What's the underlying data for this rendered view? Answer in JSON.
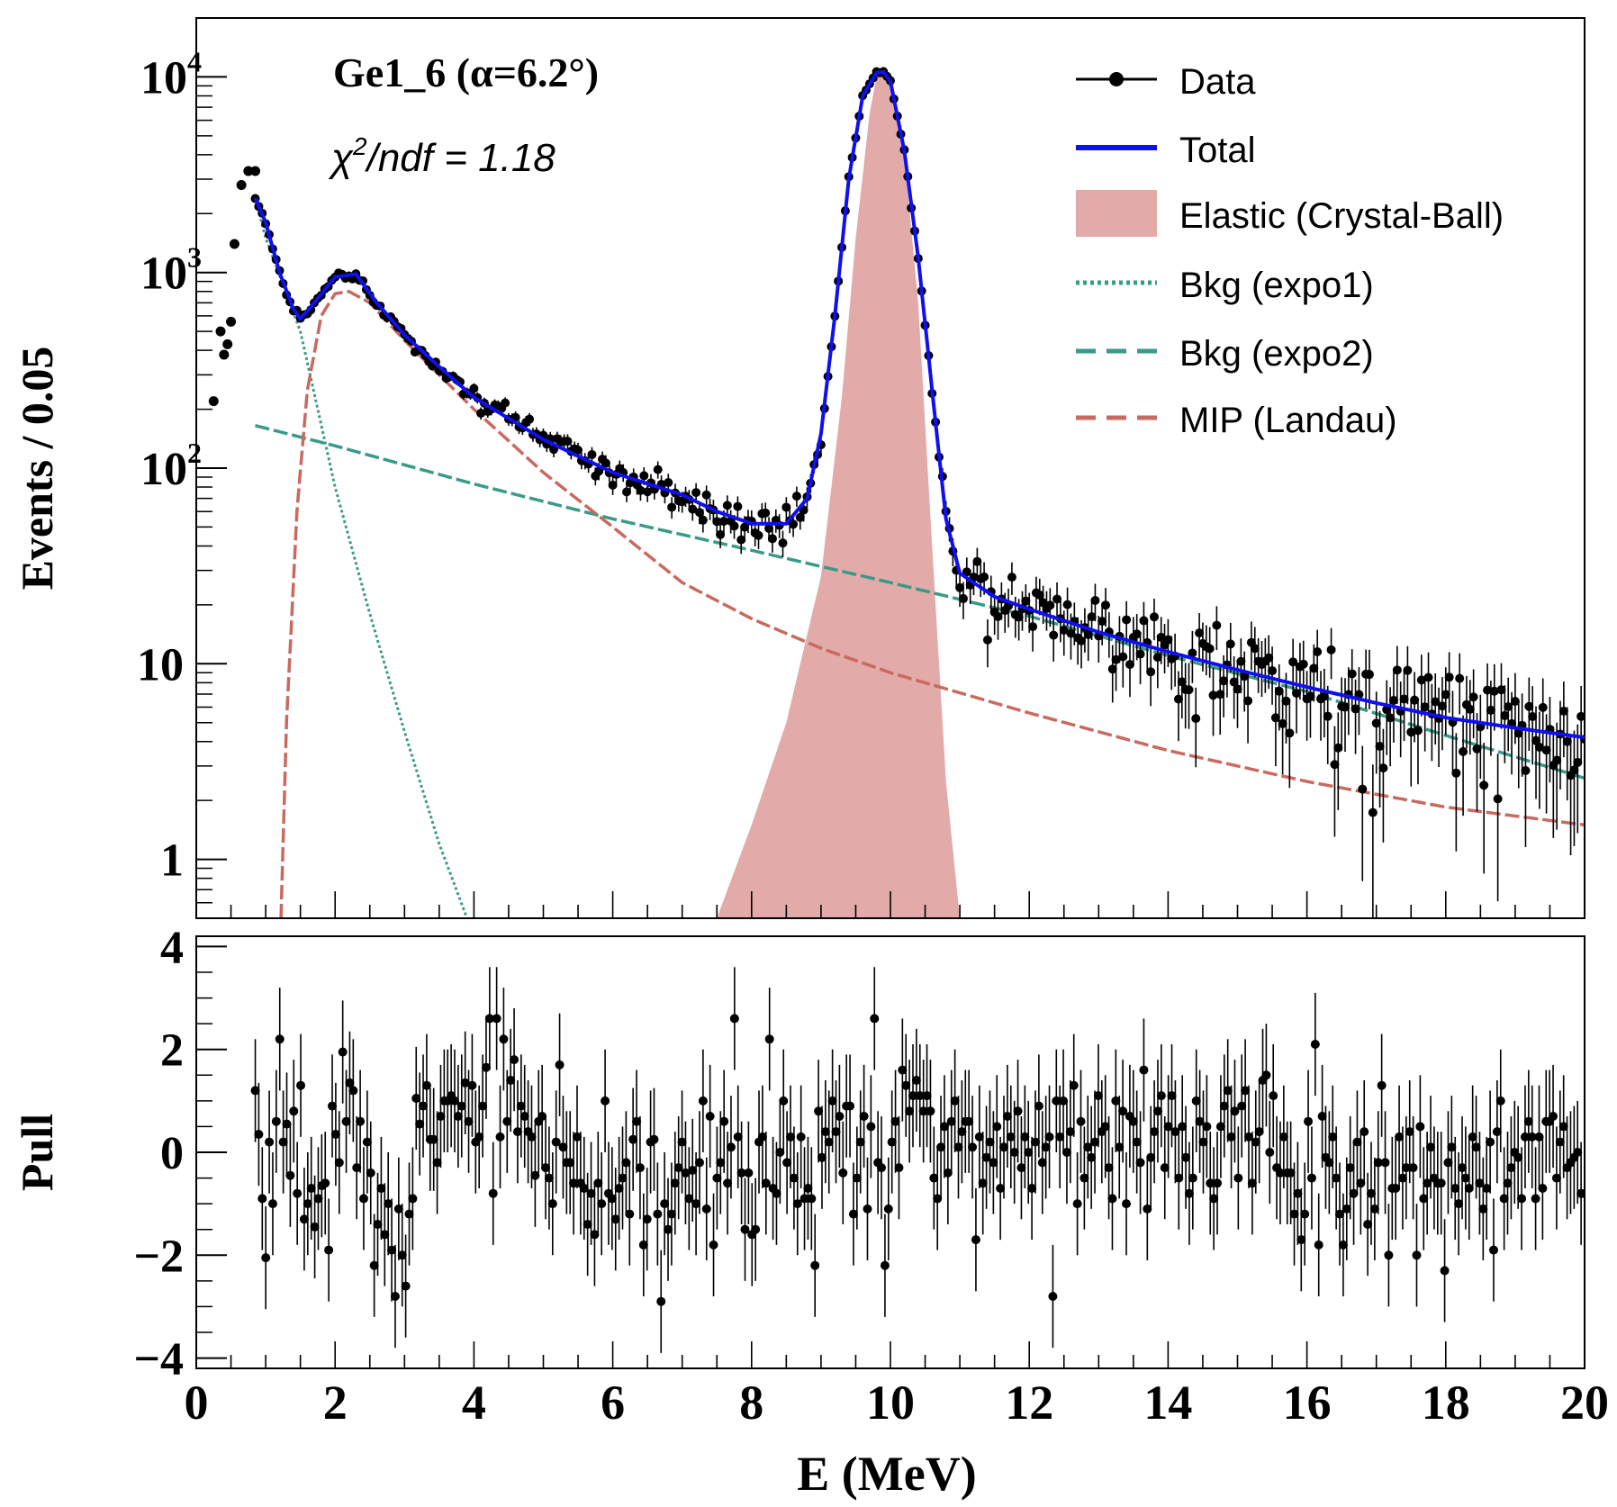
{
  "chart_data": [
    {
      "panel": "top",
      "type": "scatter",
      "xlim": [
        0,
        20
      ],
      "ylim": [
        0.5,
        20000
      ],
      "yscale": "log",
      "ylabel": "Events / 0.05",
      "yticks": [
        {
          "value": 1,
          "label": "1"
        },
        {
          "value": 10,
          "label": "10"
        },
        {
          "value": 100,
          "label": "10",
          "exp": "2"
        },
        {
          "value": 1000,
          "label": "10",
          "exp": "3"
        },
        {
          "value": 10000,
          "label": "10",
          "exp": "4"
        }
      ],
      "annotations": {
        "title": "Ge1_6 (α=6.2°)",
        "chi2_prefix": "χ",
        "chi2_sup": "2",
        "chi2_rest": "/ndf = 1.18"
      },
      "legend": {
        "position": "top-right",
        "entries": [
          {
            "key": "data",
            "label": "Data"
          },
          {
            "key": "total",
            "label": "Total"
          },
          {
            "key": "elastic",
            "label": "Elastic (Crystal-Ball)"
          },
          {
            "key": "expo1",
            "label": "Bkg (expo1)"
          },
          {
            "key": "expo2",
            "label": "Bkg (expo2)"
          },
          {
            "key": "mip",
            "label": "MIP (Landau)"
          }
        ]
      },
      "colors": {
        "data": "#000000",
        "total": "#1010ee",
        "elastic": "#e2aaa8",
        "expo1": "#3a9a88",
        "expo2": "#3a9a88",
        "mip": "#c86a60"
      },
      "series": [
        {
          "name": "Data (low-energy points)",
          "x": [
            0.25,
            0.35,
            0.4,
            0.45,
            0.5,
            0.55,
            0.65,
            0.75,
            0.85
          ],
          "y": [
            220,
            500,
            380,
            430,
            560,
            1400,
            2800,
            3300,
            3300
          ]
        },
        {
          "name": "Total",
          "x": [
            0.85,
            1.0,
            1.2,
            1.4,
            1.5,
            1.7,
            2.0,
            2.3,
            2.6,
            3.0,
            3.5,
            4.0,
            5.0,
            6.0,
            7.0,
            7.5,
            8.0,
            8.5,
            8.8,
            9.0,
            9.2,
            9.4,
            9.6,
            9.8,
            9.9,
            10.0,
            10.2,
            10.4,
            10.6,
            10.8,
            11.0,
            11.5,
            12.0,
            13.0,
            14.0,
            15.0,
            16.0,
            17.0,
            18.0,
            19.0,
            20.0
          ],
          "y": [
            2400,
            1800,
            1000,
            650,
            580,
            700,
            950,
            980,
            700,
            480,
            330,
            230,
            140,
            95,
            73,
            60,
            52,
            52,
            70,
            150,
            600,
            3000,
            8000,
            10500,
            10600,
            9500,
            4200,
            1200,
            250,
            55,
            29,
            22,
            19,
            14.5,
            11.5,
            9.3,
            7.6,
            6.3,
            5.3,
            4.7,
            4.2
          ]
        },
        {
          "name": "Elastic (Crystal-Ball)",
          "x": [
            7.5,
            8.0,
            8.5,
            9.0,
            9.3,
            9.5,
            9.7,
            9.8,
            9.9,
            10.0,
            10.2,
            10.4,
            10.6,
            10.8,
            11.0
          ],
          "y": [
            0.5,
            1.5,
            5,
            28,
            230,
            1500,
            6500,
            10000,
            10500,
            9000,
            4000,
            700,
            40,
            2.5,
            0.5
          ]
        },
        {
          "name": "Bkg (expo1)",
          "x": [
            0.85,
            1.0,
            1.5,
            2.0,
            2.5,
            3.0,
            3.5,
            3.9
          ],
          "y": [
            2400,
            1500,
            500,
            80,
            18,
            4.5,
            1.2,
            0.5
          ]
        },
        {
          "name": "Bkg (expo2)",
          "x": [
            0.85,
            2.0,
            4.0,
            6.0,
            8.0,
            10.0,
            12.0,
            14.0,
            16.0,
            18.0,
            20.0
          ],
          "y": [
            165,
            130,
            83,
            55,
            38,
            26,
            17.5,
            11,
            7.2,
            4.3,
            2.6
          ]
        },
        {
          "name": "MIP (Landau)",
          "x": [
            1.22,
            1.3,
            1.45,
            1.6,
            1.8,
            2.0,
            2.2,
            2.5,
            3.0,
            3.5,
            4.0,
            5.0,
            6.0,
            7.0,
            8.0,
            9.0,
            10.0,
            12.0,
            14.0,
            16.0,
            18.0,
            20.0
          ],
          "y": [
            0.5,
            5,
            60,
            250,
            600,
            780,
            800,
            700,
            450,
            300,
            200,
            95,
            50,
            26,
            17,
            12,
            9,
            5.6,
            3.6,
            2.5,
            1.85,
            1.5
          ]
        }
      ]
    },
    {
      "panel": "bottom",
      "type": "scatter",
      "xlim": [
        0,
        20
      ],
      "ylim": [
        -4.2,
        4.2
      ],
      "ylabel": "Pull",
      "xlabel": "E (MeV)",
      "yticks": [
        {
          "value": 4,
          "label": "4"
        },
        {
          "value": 2,
          "label": "2"
        },
        {
          "value": 0,
          "label": "0"
        },
        {
          "value": -2,
          "label": "−2"
        },
        {
          "value": -4,
          "label": "−4"
        }
      ],
      "xticks": [
        {
          "value": 0,
          "label": "0"
        },
        {
          "value": 2,
          "label": "2"
        },
        {
          "value": 4,
          "label": "4"
        },
        {
          "value": 6,
          "label": "6"
        },
        {
          "value": 8,
          "label": "8"
        },
        {
          "value": 10,
          "label": "10"
        },
        {
          "value": 12,
          "label": "12"
        },
        {
          "value": 14,
          "label": "14"
        },
        {
          "value": 16,
          "label": "16"
        },
        {
          "value": 18,
          "label": "18"
        },
        {
          "value": 20,
          "label": "20"
        }
      ],
      "pull_x_range": [
        0.85,
        20.0
      ],
      "pull_error": 1.0,
      "pull_values": [
        1.2,
        0.35,
        -0.9,
        -2.05,
        0.2,
        -1.0,
        0.6,
        2.2,
        0.2,
        0.55,
        -0.45,
        0.8,
        -0.8,
        1.3,
        -1.3,
        -1.0,
        -0.7,
        -1.45,
        -0.9,
        -0.65,
        -0.6,
        -1.9,
        0.9,
        0.35,
        -0.2,
        1.95,
        0.6,
        1.35,
        1.2,
        -0.3,
        0.6,
        -0.9,
        0.2,
        -0.4,
        -2.2,
        -1.4,
        -0.7,
        -1.6,
        -1.0,
        -1.9,
        -2.8,
        -1.1,
        -2.0,
        -2.6,
        -1.2,
        -0.9,
        1.05,
        0.55,
        0.9,
        1.3,
        0.25,
        0.25,
        -0.2,
        0.7,
        1.0,
        1.0,
        1.1,
        1.0,
        0.7,
        0.9,
        1.35,
        0.6,
        1.3,
        0.2,
        0.3,
        0.9,
        1.65,
        2.6,
        -0.8,
        2.6,
        0.3,
        2.2,
        0.6,
        1.4,
        1.8,
        0.4,
        0.9,
        0.7,
        0.4,
        0.3,
        -0.45,
        0.6,
        0.7,
        -0.3,
        -0.5,
        -1.0,
        0.2,
        1.7,
        0.1,
        -0.2,
        -0.2,
        -0.6,
        0.3,
        -0.6,
        -0.7,
        -1.4,
        -0.8,
        -1.6,
        -0.6,
        -1.0,
        1.0,
        -0.8,
        -0.9,
        -1.3,
        -0.7,
        -0.5,
        -0.2,
        -1.2,
        0.25,
        0.6,
        -0.3,
        -1.8,
        -1.3,
        0.2,
        0.25,
        -1.2,
        -2.9,
        -1.0,
        -1.5,
        -1.2,
        -0.6,
        -0.3,
        0.2,
        -0.4,
        -0.9,
        -0.35,
        -1.0,
        -0.2,
        1.0,
        -1.1,
        0.7,
        -1.8,
        -0.5,
        -0.2,
        0.6,
        -0.6,
        0.1,
        2.6,
        0.3,
        -0.4,
        -1.5,
        -0.4,
        -1.6,
        -1.5,
        0.2,
        0.3,
        -0.6,
        2.2,
        -0.7,
        -0.8,
        0.0,
        1.0,
        -0.2,
        0.3,
        -0.5,
        -1.0,
        0.3,
        -0.9,
        -0.7,
        -0.9,
        -2.2,
        0.8,
        -0.1,
        0.4,
        0.2,
        1.0,
        0.4,
        0.7,
        -0.4,
        0.9,
        0.9,
        -1.2,
        -0.5,
        0.2,
        0.7,
        -1.1,
        0.5,
        2.6,
        -0.2,
        -0.3,
        -2.2,
        -1.1,
        0.2,
        0.6,
        -0.3,
        1.6,
        1.3,
        0.8,
        1.1,
        1.4,
        1.1,
        0.8,
        1.1,
        0.8,
        -0.5,
        -0.9,
        0.1,
        0.5,
        -0.4,
        0.6,
        1.0,
        0.1,
        0.4,
        0.6,
        0.6,
        0.1,
        -1.7,
        0.3,
        -0.6,
        -0.1,
        0.2,
        -0.2,
        0.5,
        -0.7,
        0.1,
        0.7,
        0.3,
        0.0,
        0.8,
        -0.3,
        0.3,
        0.0,
        -0.7,
        0.2,
        0.9,
        -0.2,
        0.1,
        0.3,
        -2.8,
        1.0,
        0.3,
        1.0,
        0.0,
        0.4,
        1.3,
        -1.0,
        0.6,
        -0.5,
        0.1,
        -0.1,
        0.2,
        1.1,
        0.4,
        0.5,
        -0.3,
        -0.9,
        1.0,
        0.1,
        0.8,
        -1.0,
        0.7,
        0.6,
        0.2,
        -0.2,
        1.6,
        -1.1,
        -0.1,
        0.4,
        0.8,
        1.1,
        -0.3,
        0.5,
        1.1,
        0.4,
        -0.5,
        0.5,
        -0.1,
        -0.8,
        -0.5,
        1.0,
        0.6,
        0.2,
        0.5,
        -0.6,
        -0.9,
        -0.6,
        0.5,
        0.9,
        1.2,
        0.3,
        0.8,
        -0.5,
        0.9,
        1.2,
        0.3,
        -0.6,
        0.2,
        0.4,
        1.4,
        1.5,
        0.0,
        1.1,
        -0.3,
        -0.4,
        0.3,
        -0.4,
        -0.4,
        -1.2,
        -0.8,
        -1.7,
        -1.2,
        0.6,
        -0.5,
        2.1,
        -1.8,
        0.7,
        -0.1,
        -0.2,
        0.3,
        -0.5,
        -1.2,
        -1.8,
        -1.1,
        -0.3,
        -0.8,
        0.2,
        -0.6,
        0.4,
        -1.4,
        -0.8,
        -1.1,
        -0.2,
        1.3,
        -0.2,
        -2.0,
        -0.7,
        -0.7,
        0.3,
        -0.5,
        -0.3,
        0.4,
        -0.3,
        -2.0,
        0.5,
        -0.9,
        -0.6,
        0.1,
        -0.5,
        -0.6,
        -0.6,
        -2.3,
        -0.2,
        0.1,
        -0.7,
        -1.0,
        -0.3,
        -0.5,
        -0.7,
        0.3,
        0.1,
        -0.6,
        -1.1,
        -0.7,
        0.2,
        -1.9,
        0.4,
        1.0,
        -0.9,
        -0.6,
        -0.3,
        0.0,
        -0.1,
        -0.9,
        0.3,
        0.6,
        0.3,
        -0.9,
        0.3,
        -0.7,
        0.6,
        0.6,
        0.7,
        -0.5,
        0.2,
        0.5,
        -0.3,
        -0.2,
        -0.1,
        0.0,
        -0.8,
        -0.8
      ]
    }
  ]
}
